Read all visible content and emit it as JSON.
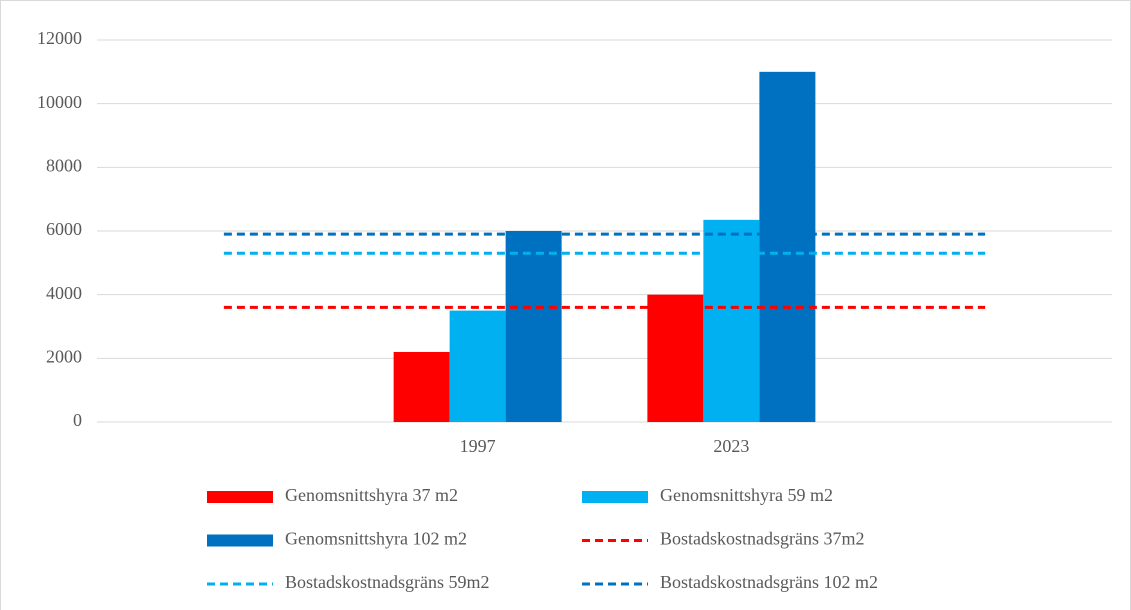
{
  "chart_data": {
    "type": "bar",
    "categories": [
      null,
      "1997",
      "2023",
      null
    ],
    "series": [
      {
        "name": "Genomsnittshyra 37 m2",
        "type": "bar",
        "color": "#ff0000",
        "values": [
          null,
          2200,
          4000,
          null
        ]
      },
      {
        "name": "Genomsnittshyra 59 m2",
        "type": "bar",
        "color": "#00b0f0",
        "values": [
          null,
          3500,
          6350,
          null
        ]
      },
      {
        "name": "Genomsnittshyra 102 m2",
        "type": "bar",
        "color": "#0070c0",
        "values": [
          null,
          6000,
          11000,
          null
        ]
      },
      {
        "name": "Bostadskostnadsgräns 37m2",
        "type": "line",
        "line_style": "dashed",
        "color": "#ff0000",
        "values": [
          3600,
          3600,
          3600,
          3600
        ]
      },
      {
        "name": "Bostadskostnadsgräns 59m2",
        "type": "line",
        "line_style": "dashed",
        "color": "#00b0f0",
        "values": [
          5300,
          5300,
          5300,
          5300
        ]
      },
      {
        "name": "Bostadskostnadsgräns 102 m2",
        "type": "line",
        "line_style": "dashed",
        "color": "#0070c0",
        "values": [
          5900,
          5900,
          5900,
          5900
        ]
      }
    ],
    "ylim": [
      0,
      12000
    ],
    "yticks": [
      0,
      2000,
      4000,
      6000,
      8000,
      10000,
      12000
    ],
    "grid": true,
    "legend": "bottom"
  }
}
